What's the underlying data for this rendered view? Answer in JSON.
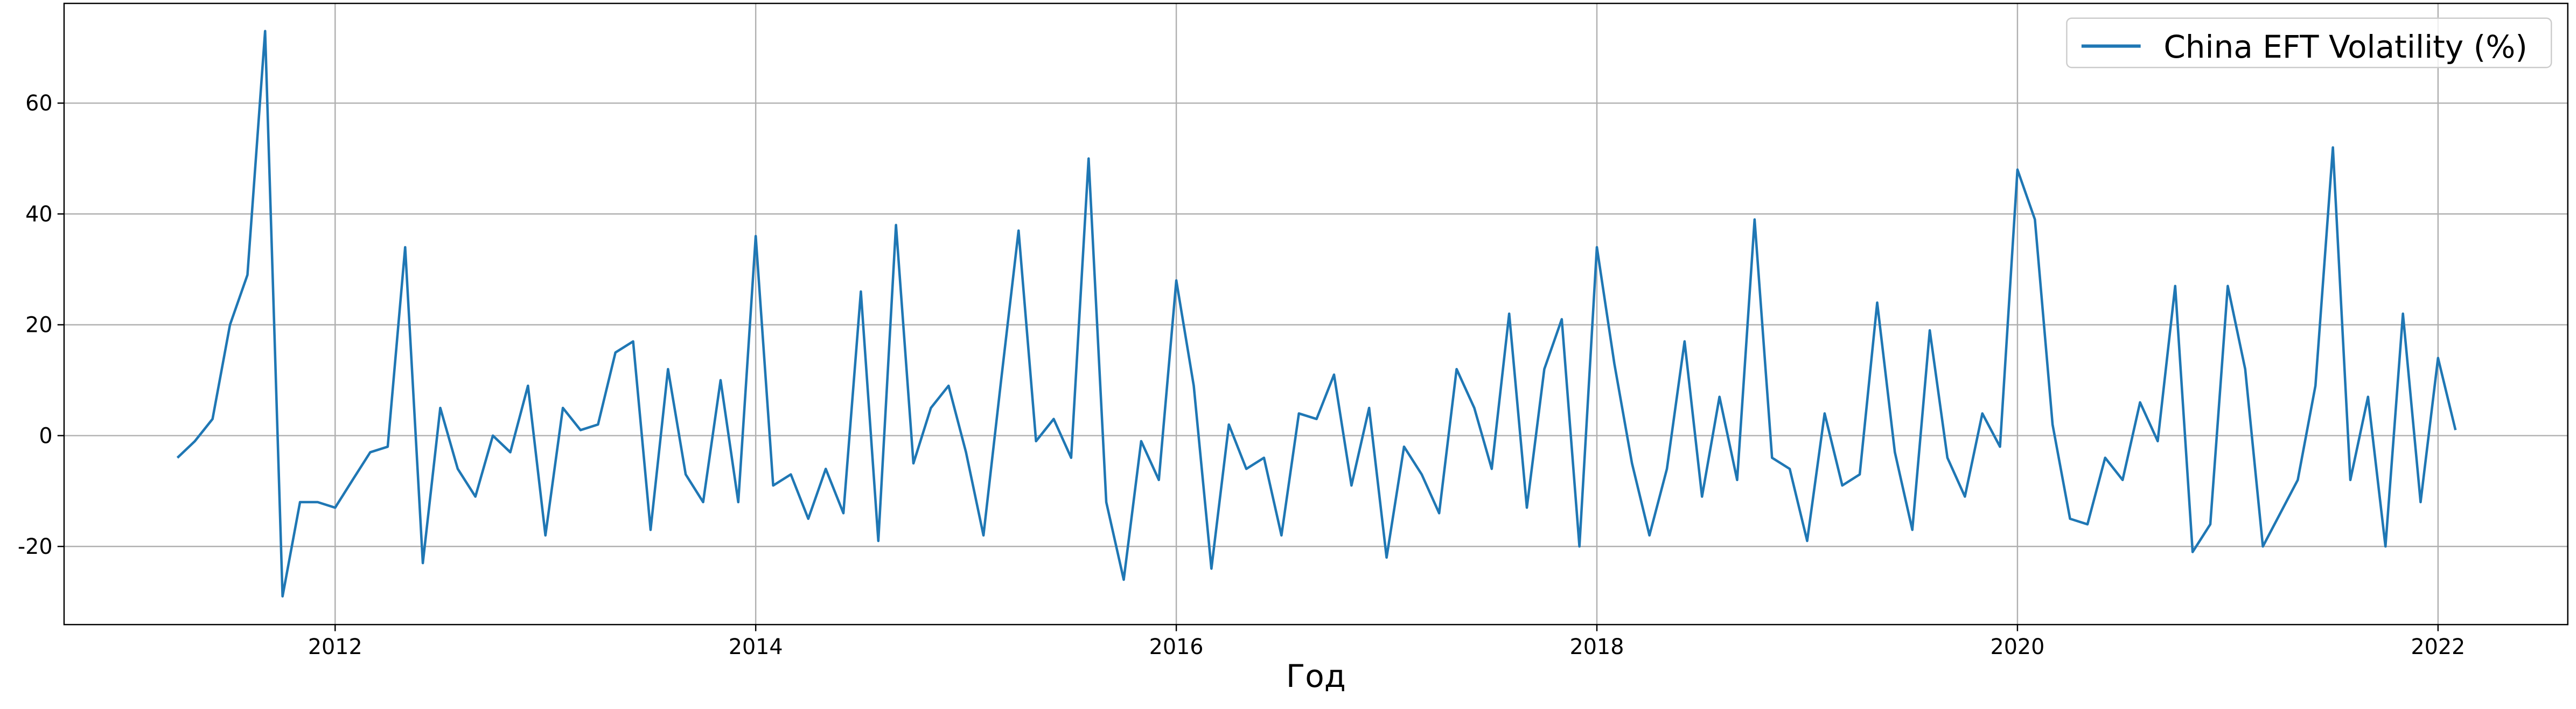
{
  "chart_data": {
    "type": "line",
    "xlabel": "Год",
    "legend": "upper right",
    "grid": true,
    "xlim": [
      2010.711,
      2022.617
    ],
    "ylim": [
      -34.1,
      78
    ],
    "xticks": [
      2012,
      2014,
      2016,
      2018,
      2020,
      2022
    ],
    "yticks": [
      -20,
      0,
      20,
      40,
      60
    ],
    "x": [
      2011.25,
      2011.333,
      2011.417,
      2011.5,
      2011.583,
      2011.667,
      2011.75,
      2011.833,
      2011.917,
      2012.0,
      2012.083,
      2012.167,
      2012.25,
      2012.333,
      2012.417,
      2012.5,
      2012.583,
      2012.667,
      2012.75,
      2012.833,
      2012.917,
      2013.0,
      2013.083,
      2013.167,
      2013.25,
      2013.333,
      2013.417,
      2013.5,
      2013.583,
      2013.667,
      2013.75,
      2013.833,
      2013.917,
      2014.0,
      2014.083,
      2014.167,
      2014.25,
      2014.333,
      2014.417,
      2014.5,
      2014.583,
      2014.667,
      2014.75,
      2014.833,
      2014.917,
      2015.0,
      2015.083,
      2015.167,
      2015.25,
      2015.333,
      2015.417,
      2015.5,
      2015.583,
      2015.667,
      2015.75,
      2015.833,
      2015.917,
      2016.0,
      2016.083,
      2016.167,
      2016.25,
      2016.333,
      2016.417,
      2016.5,
      2016.583,
      2016.667,
      2016.75,
      2016.833,
      2016.917,
      2017.0,
      2017.083,
      2017.167,
      2017.25,
      2017.333,
      2017.417,
      2017.5,
      2017.583,
      2017.667,
      2017.75,
      2017.833,
      2017.917,
      2018.0,
      2018.083,
      2018.167,
      2018.25,
      2018.333,
      2018.417,
      2018.5,
      2018.583,
      2018.667,
      2018.75,
      2018.833,
      2018.917,
      2019.0,
      2019.083,
      2019.167,
      2019.25,
      2019.333,
      2019.417,
      2019.5,
      2019.583,
      2019.667,
      2019.75,
      2019.833,
      2019.917,
      2020.0,
      2020.083,
      2020.167,
      2020.25,
      2020.333,
      2020.417,
      2020.5,
      2020.583,
      2020.667,
      2020.75,
      2020.833,
      2020.917,
      2021.0,
      2021.083,
      2021.167,
      2021.25,
      2021.333,
      2021.417,
      2021.5,
      2021.583,
      2021.667,
      2021.75,
      2021.833,
      2021.917,
      2022.0,
      2022.083
    ],
    "series": [
      {
        "name": "China EFT Volatility (%)",
        "color": "#1f77b4",
        "values": [
          -4,
          -1,
          3,
          20,
          29,
          73,
          -29,
          -12,
          -12,
          -13,
          -8,
          -3,
          -2,
          34,
          -23,
          5,
          -6,
          -11,
          0,
          -3,
          9,
          -18,
          5,
          1,
          2,
          15,
          17,
          -17,
          12,
          -7,
          -12,
          10,
          -12,
          36,
          -9,
          -7,
          -15,
          -6,
          -14,
          26,
          -19,
          38,
          -5,
          5,
          9,
          -3,
          -18,
          10,
          37,
          -1,
          3,
          -4,
          50,
          -12,
          -26,
          -1,
          -8,
          28,
          9,
          -24,
          2,
          -6,
          -4,
          -18,
          4,
          3,
          11,
          -9,
          5,
          -22,
          -2,
          -7,
          -14,
          12,
          5,
          -6,
          22,
          -13,
          12,
          21,
          -20,
          34,
          13,
          -5,
          -18,
          -6,
          17,
          -11,
          7,
          -8,
          39,
          -4,
          -6,
          -19,
          4,
          -9,
          -7,
          24,
          -3,
          -17,
          19,
          -4,
          -11,
          4,
          -2,
          48,
          39,
          2,
          -15,
          -16,
          -4,
          -8,
          6,
          -1,
          27,
          -21,
          -16,
          27,
          12,
          -20,
          -14,
          -8,
          9,
          52,
          -8,
          7,
          -20,
          22,
          -12,
          14,
          1
        ]
      }
    ]
  }
}
